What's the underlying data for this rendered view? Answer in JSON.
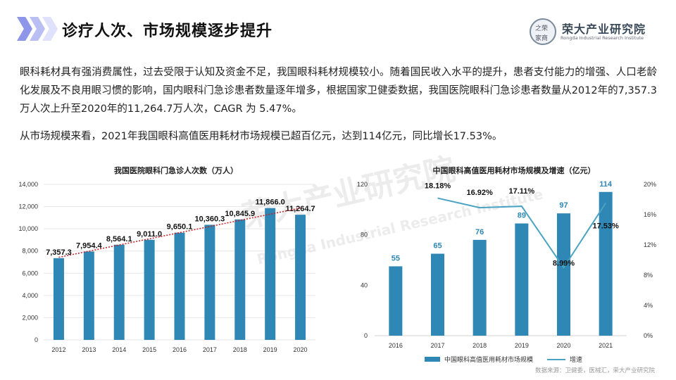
{
  "header": {
    "title": "诊疗人次、市场规模逐步提升",
    "logo_cn": "荣大产业研究院",
    "logo_en": "Rongda Industrial Research Institute",
    "seal": [
      "之荣",
      "家商"
    ],
    "accent": "#7f8be8"
  },
  "paragraphs": {
    "p1": "眼科耗材具有强消费属性，过去受限于认知及资金不足，我国眼科耗材规模较小。随着国民收入水平的提升，患者支付能力的增强、人口老龄化发展及不良用眼习惯的影响，国内眼科门急诊患者数量逐年增多，根据国家卫健委数据，我国医院眼科门急诊患者数量从2012年的7,357.3万人次上升至2020年的11,264.7万人次，CAGR 为 5.47%。",
    "p2": "从市场规模来看，2021年我国眼科高值医用耗材市场规模已超百亿元，达到114亿元，同比增长17.53%。"
  },
  "watermark": {
    "cn": "荣大产业研究院",
    "en": "Rongda Industrial Research Institute"
  },
  "source": "数据来源：卫健委，医械汇，荣大产业研究院",
  "chart_data": [
    {
      "type": "bar",
      "title": "我国医院眼科门急诊人次数（万人）",
      "categories": [
        "2012",
        "2013",
        "2014",
        "2015",
        "2016",
        "2017",
        "2018",
        "2019",
        "2020"
      ],
      "values": [
        7357.3,
        7954.4,
        8564.1,
        9011.0,
        9650.1,
        10360.3,
        10845.9,
        11866.0,
        11264.7
      ],
      "value_labels": [
        "7,357.3",
        "7,954.4",
        "8,564.1",
        "9,011.0",
        "9,650.1",
        "10,360.3",
        "10,845.9",
        "11,866.0",
        "11,264.7"
      ],
      "ylim": [
        0,
        14000
      ],
      "yticks": [
        "0",
        "2,000",
        "4,000",
        "6,000",
        "8,000",
        "10,000",
        "12,000",
        "14,000"
      ],
      "trendline": "linear, dotted red",
      "bar_color": "#2e87b4",
      "trend_color": "#c0272d"
    },
    {
      "type": "bar+line",
      "title": "中国眼科高值医用耗材市场规模及增速（亿元）",
      "categories": [
        "2016",
        "2017",
        "2018",
        "2019",
        "2020",
        "2021"
      ],
      "series": [
        {
          "name": "中国眼科高值医用耗材市场规模",
          "type": "bar",
          "axis": "left",
          "values": [
            55,
            65,
            76,
            89,
            97,
            114
          ],
          "labels": [
            "55",
            "65",
            "76",
            "89",
            "97",
            "114"
          ]
        },
        {
          "name": "增速",
          "type": "line",
          "axis": "right",
          "values": [
            null,
            18.18,
            16.92,
            17.11,
            8.99,
            17.53
          ],
          "labels": [
            "",
            "18.18%",
            "16.92%",
            "17.11%",
            "8.99%",
            "17.53%"
          ]
        }
      ],
      "ylim_left": [
        0,
        120
      ],
      "yticks_left": [
        "0",
        "40",
        "80",
        "120"
      ],
      "ylim_right": [
        0,
        20
      ],
      "yticks_right": [
        "0%",
        "4%",
        "8%",
        "12%",
        "16%",
        "20%"
      ],
      "bar_color": "#2e87b4",
      "line_color": "#4aa3c2",
      "legend": {
        "bar": "中国眼科高值医用耗材市场规模",
        "line": "增速"
      }
    }
  ]
}
